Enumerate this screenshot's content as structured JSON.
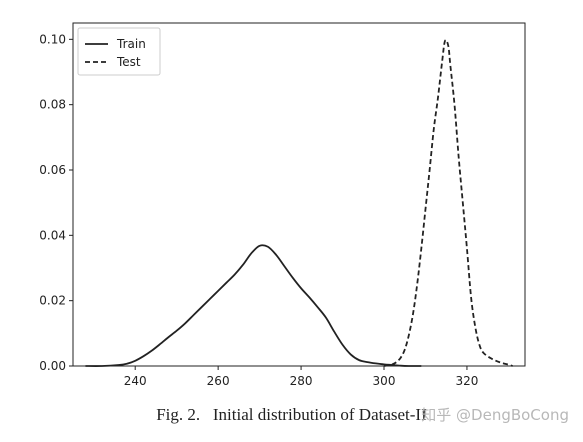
{
  "caption": "Fig. 2.   Initial distribution of Dataset-II",
  "watermark": "知乎 @DengBoCong",
  "chart_data": {
    "type": "line",
    "title": "",
    "xlabel": "",
    "ylabel": "",
    "xlim": [
      225,
      334
    ],
    "ylim": [
      0.0,
      0.105
    ],
    "xticks": [
      240,
      260,
      280,
      300,
      320
    ],
    "yticks": [
      0.0,
      0.02,
      0.04,
      0.06,
      0.08,
      0.1
    ],
    "xtick_labels": [
      "240",
      "260",
      "280",
      "300",
      "320"
    ],
    "ytick_labels": [
      "0.00",
      "0.02",
      "0.04",
      "0.06",
      "0.08",
      "0.10"
    ],
    "grid": false,
    "legend": {
      "placement": "top-left",
      "entries": [
        "Train",
        "Test"
      ]
    },
    "series": [
      {
        "name": "Train",
        "style": "solid",
        "color": "#222222",
        "x": [
          228,
          232,
          236,
          238,
          240,
          242,
          244,
          246,
          248,
          250,
          252,
          254,
          256,
          258,
          260,
          262,
          264,
          266,
          268,
          270,
          272,
          274,
          276,
          278,
          280,
          282,
          284,
          286,
          288,
          290,
          292,
          294,
          296,
          298,
          300,
          302,
          304,
          306,
          308,
          309
        ],
        "y": [
          0.0,
          0.0,
          0.0003,
          0.0007,
          0.0016,
          0.003,
          0.0047,
          0.0067,
          0.0088,
          0.0108,
          0.013,
          0.0155,
          0.018,
          0.0205,
          0.023,
          0.0255,
          0.028,
          0.031,
          0.0345,
          0.0368,
          0.0365,
          0.034,
          0.0305,
          0.027,
          0.0238,
          0.021,
          0.018,
          0.0148,
          0.0105,
          0.0065,
          0.0035,
          0.0018,
          0.0012,
          0.0008,
          0.0005,
          0.0003,
          0.0001,
          0.0,
          0.0,
          0.0
        ]
      },
      {
        "name": "Test",
        "style": "dashed",
        "color": "#222222",
        "x": [
          300,
          302,
          303,
          304,
          305,
          306,
          307,
          308,
          309,
          310,
          311,
          312,
          313,
          314,
          314.7,
          315.5,
          316,
          317,
          318,
          319,
          320,
          321,
          322,
          323,
          324,
          326,
          328,
          330,
          331
        ],
        "y": [
          0.0,
          0.0005,
          0.0012,
          0.0025,
          0.005,
          0.0095,
          0.016,
          0.025,
          0.036,
          0.048,
          0.06,
          0.0725,
          0.082,
          0.093,
          0.0995,
          0.098,
          0.092,
          0.08,
          0.064,
          0.05,
          0.036,
          0.021,
          0.012,
          0.0065,
          0.004,
          0.0022,
          0.0011,
          0.0004,
          0.0
        ]
      }
    ]
  }
}
